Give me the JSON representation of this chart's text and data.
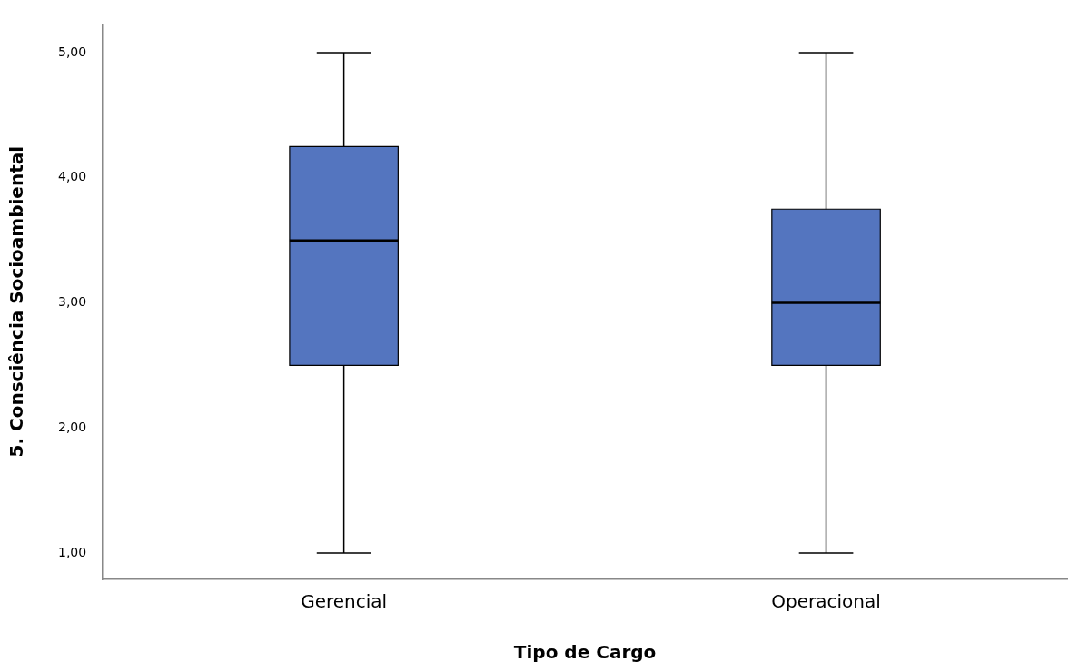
{
  "chart_data": {
    "type": "box",
    "xlabel": "Tipo de Cargo",
    "ylabel": "5. Consciência Socioambiental",
    "categories": [
      "Gerencial",
      "Operacional"
    ],
    "color": "#5475bf",
    "boxes": [
      {
        "low": 1,
        "q1": 2.5,
        "median": 3.5,
        "q3": 4.25,
        "high": 5
      },
      {
        "low": 1,
        "q1": 2.5,
        "median": 3,
        "q3": 3.75,
        "high": 5
      }
    ],
    "ylim": [
      0.79,
      5.23
    ],
    "yticks": [
      {
        "value": 1,
        "label": "1,00"
      },
      {
        "value": 2,
        "label": "2,00"
      },
      {
        "value": 3,
        "label": "3,00"
      },
      {
        "value": 4,
        "label": "4,00"
      },
      {
        "value": 5,
        "label": "5,00"
      }
    ],
    "legend": false
  }
}
